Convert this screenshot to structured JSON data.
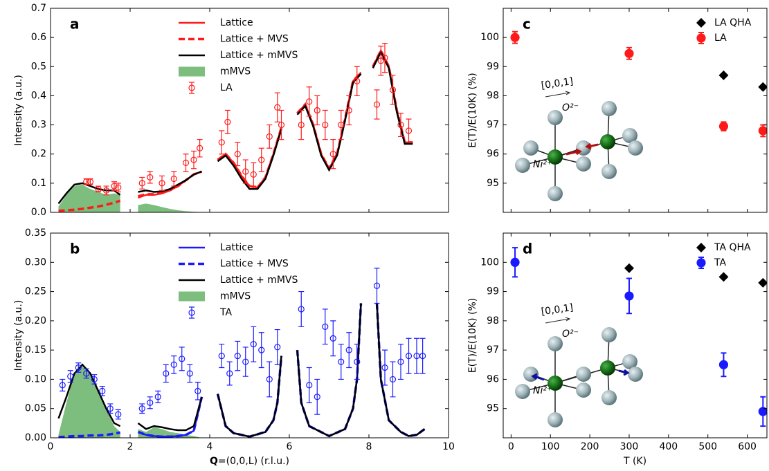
{
  "chart_data": [
    {
      "type": "line",
      "panel_label": "a",
      "ylabel": "Intensity (a.u.)",
      "xlim": [
        0,
        10
      ],
      "ylim": [
        0,
        0.7
      ],
      "xticks": [
        0,
        2,
        4,
        6,
        8,
        10
      ],
      "show_xtick_labels": false,
      "yticks": [
        {
          "value": 0,
          "label": "0.0"
        },
        0.1,
        0.2,
        0.3,
        0.4,
        0.5,
        0.6,
        0.7
      ],
      "legend": "upper center",
      "x": [
        0.2,
        0.4,
        0.6,
        0.8,
        1.0,
        1.2,
        1.4,
        1.6,
        1.75,
        2.0,
        2.2,
        2.4,
        2.6,
        2.8,
        3.0,
        3.2,
        3.4,
        3.6,
        3.8,
        4.0,
        4.2,
        4.4,
        4.6,
        4.8,
        5.0,
        5.2,
        5.4,
        5.6,
        5.8,
        6.0,
        6.2,
        6.4,
        6.6,
        6.8,
        7.0,
        7.2,
        7.4,
        7.6,
        7.8,
        7.95,
        8.1,
        8.3,
        8.5,
        8.7,
        8.9,
        9.1
      ],
      "series": [
        {
          "name": "Lattice",
          "color": "#ff1a1a",
          "style": "solid",
          "values": [
            0.005,
            0.006,
            0.008,
            0.01,
            0.013,
            0.017,
            0.022,
            0.03,
            0.035,
            null,
            0.05,
            0.06,
            0.06,
            0.065,
            0.075,
            0.09,
            0.11,
            0.13,
            0.14,
            null,
            0.18,
            0.2,
            0.17,
            0.125,
            0.09,
            0.085,
            0.12,
            0.2,
            0.29,
            null,
            0.34,
            0.37,
            0.3,
            0.2,
            0.15,
            0.2,
            0.32,
            0.45,
            0.48,
            null,
            0.5,
            0.555,
            0.5,
            0.35,
            0.24,
            0.24
          ]
        },
        {
          "name": "Lattice + MVS",
          "color": "#ff1a1a",
          "style": "dashed",
          "values": [
            0.005,
            0.007,
            0.009,
            0.012,
            0.016,
            0.02,
            0.026,
            0.033,
            0.04,
            null,
            0.055,
            0.062,
            0.062,
            0.066,
            0.076,
            0.09,
            0.11,
            0.13,
            0.14,
            null,
            0.18,
            0.2,
            0.17,
            0.125,
            0.09,
            0.085,
            0.12,
            0.2,
            0.29,
            null,
            0.34,
            0.37,
            0.3,
            0.2,
            0.15,
            0.2,
            0.32,
            0.45,
            0.48,
            null,
            0.5,
            0.555,
            0.5,
            0.35,
            0.24,
            0.24
          ]
        },
        {
          "name": "Lattice + mMVS",
          "color": "#000000",
          "style": "solid",
          "values": [
            0.03,
            0.065,
            0.095,
            0.1,
            0.09,
            0.08,
            0.075,
            0.075,
            0.06,
            null,
            0.07,
            0.075,
            0.07,
            0.072,
            0.08,
            0.095,
            0.11,
            0.13,
            0.14,
            null,
            0.175,
            0.195,
            0.16,
            0.115,
            0.08,
            0.08,
            0.115,
            0.195,
            0.285,
            null,
            0.335,
            0.365,
            0.295,
            0.195,
            0.145,
            0.195,
            0.315,
            0.445,
            0.475,
            null,
            0.495,
            0.55,
            0.495,
            0.345,
            0.235,
            0.235
          ]
        },
        {
          "name": "mMVS",
          "color": "#7dbd7d",
          "style": "area",
          "values": [
            0.02,
            0.06,
            0.09,
            0.095,
            0.08,
            0.07,
            0.06,
            0.065,
            0.06,
            null,
            0.025,
            0.03,
            0.025,
            0.018,
            0.012,
            0.007,
            0.004,
            0.002,
            0.001,
            null,
            0,
            0,
            0,
            0,
            0,
            0,
            0,
            0,
            0,
            null,
            0,
            0,
            0,
            0,
            0,
            0,
            0,
            0,
            0,
            null,
            0,
            0,
            0,
            0,
            0,
            0
          ]
        },
        {
          "name": "LA",
          "color": "#ff1a1a",
          "style": "errorbar",
          "marker": "open-circle",
          "x": [
            0.9,
            1.0,
            1.2,
            1.4,
            1.6,
            1.7,
            2.3,
            2.5,
            2.8,
            3.1,
            3.4,
            3.6,
            3.75,
            4.3,
            4.45,
            4.7,
            4.9,
            5.1,
            5.3,
            5.5,
            5.7,
            5.8,
            6.3,
            6.5,
            6.7,
            6.9,
            7.1,
            7.3,
            7.5,
            7.7,
            8.2,
            8.3,
            8.4,
            8.6,
            8.8,
            9.0
          ],
          "values": [
            0.105,
            0.105,
            0.08,
            0.075,
            0.09,
            0.085,
            0.1,
            0.12,
            0.1,
            0.115,
            0.17,
            0.18,
            0.22,
            0.24,
            0.31,
            0.2,
            0.14,
            0.13,
            0.18,
            0.26,
            0.36,
            0.3,
            0.3,
            0.38,
            0.35,
            0.3,
            0.2,
            0.3,
            0.35,
            0.45,
            0.37,
            0.52,
            0.53,
            0.42,
            0.3,
            0.28
          ],
          "errors": [
            0.01,
            0.01,
            0.01,
            0.015,
            0.015,
            0.015,
            0.02,
            0.02,
            0.025,
            0.025,
            0.03,
            0.03,
            0.03,
            0.04,
            0.04,
            0.04,
            0.04,
            0.04,
            0.04,
            0.04,
            0.05,
            0.05,
            0.05,
            0.05,
            0.05,
            0.05,
            0.05,
            0.05,
            0.05,
            0.05,
            0.05,
            0.05,
            0.05,
            0.05,
            0.04,
            0.04
          ]
        }
      ]
    },
    {
      "type": "line",
      "panel_label": "b",
      "ylabel": "Intensity (a.u.)",
      "xlabel": {
        "bold": "Q",
        "rest": "=(0,0,L) (r.l.u.)"
      },
      "xlim": [
        0,
        10
      ],
      "ylim": [
        0,
        0.35
      ],
      "xticks": [
        0,
        2,
        4,
        6,
        8,
        10
      ],
      "show_xtick_labels": true,
      "yticks": [
        {
          "value": 0,
          "label": "0.00"
        },
        0.05,
        {
          "value": 0.1,
          "label": "0.10"
        },
        0.15,
        {
          "value": 0.2,
          "label": "0.20"
        },
        0.25,
        {
          "value": 0.3,
          "label": "0.30"
        },
        0.35
      ],
      "legend": "upper center",
      "x": [
        0.2,
        0.4,
        0.6,
        0.8,
        1.0,
        1.2,
        1.4,
        1.6,
        1.75,
        2.0,
        2.2,
        2.4,
        2.6,
        2.8,
        3.0,
        3.2,
        3.4,
        3.6,
        3.8,
        4.0,
        4.2,
        4.4,
        4.6,
        5.0,
        5.4,
        5.6,
        5.7,
        5.8,
        6.0,
        6.2,
        6.3,
        6.5,
        7.0,
        7.4,
        7.6,
        7.7,
        7.8,
        8.0,
        8.2,
        8.3,
        8.5,
        8.8,
        9.0,
        9.2,
        9.4
      ],
      "series": [
        {
          "name": "Lattice",
          "color": "#1a1aff",
          "style": "solid",
          "values": [
            0.001,
            0.001,
            0.002,
            0.002,
            0.003,
            0.003,
            0.004,
            0.006,
            0.008,
            null,
            0.01,
            0.005,
            0.003,
            0.002,
            0.002,
            0.003,
            0.005,
            0.012,
            0.07,
            null,
            0.075,
            0.02,
            0.008,
            0.002,
            0.01,
            0.03,
            0.06,
            0.14,
            null,
            0.15,
            0.06,
            0.02,
            0.003,
            0.015,
            0.05,
            0.1,
            0.23,
            null,
            0.23,
            0.1,
            0.03,
            0.01,
            0.003,
            0.005,
            0.015
          ]
        },
        {
          "name": "Lattice + MVS",
          "color": "#1a1aff",
          "style": "dashed",
          "values": [
            0.001,
            0.002,
            0.003,
            0.003,
            0.004,
            0.004,
            0.005,
            0.007,
            0.009,
            null,
            0.01,
            0.005,
            0.003,
            0.002,
            0.002,
            0.003,
            0.005,
            0.012,
            0.07,
            null,
            0.075,
            0.02,
            0.008,
            0.002,
            0.01,
            0.03,
            0.06,
            0.14,
            null,
            0.15,
            0.06,
            0.02,
            0.003,
            0.015,
            0.05,
            0.1,
            0.23,
            null,
            0.23,
            0.1,
            0.03,
            0.01,
            0.003,
            0.005,
            0.015
          ]
        },
        {
          "name": "Lattice + mMVS",
          "color": "#000000",
          "style": "solid",
          "values": [
            0.033,
            0.07,
            0.11,
            0.125,
            0.11,
            0.08,
            0.05,
            0.025,
            0.02,
            null,
            0.025,
            0.015,
            0.02,
            0.018,
            0.015,
            0.013,
            0.013,
            0.02,
            0.07,
            null,
            0.075,
            0.02,
            0.008,
            0.002,
            0.01,
            0.03,
            0.06,
            0.14,
            null,
            0.15,
            0.06,
            0.02,
            0.003,
            0.015,
            0.05,
            0.1,
            0.23,
            null,
            0.23,
            0.1,
            0.03,
            0.01,
            0.003,
            0.005,
            0.015
          ]
        },
        {
          "name": "mMVS",
          "color": "#7dbd7d",
          "style": "area",
          "values": [
            0.005,
            0.06,
            0.11,
            0.122,
            0.108,
            0.078,
            0.048,
            0.02,
            0.01,
            null,
            0.015,
            0.01,
            0.018,
            0.015,
            0.01,
            0.008,
            0.005,
            0.003,
            0,
            null,
            0,
            0,
            0,
            0,
            0,
            0,
            0,
            0,
            null,
            0,
            0,
            0,
            0,
            0,
            0,
            0,
            0,
            null,
            0,
            0,
            0,
            0,
            0,
            0,
            0
          ]
        },
        {
          "name": "TA",
          "color": "#1a1aff",
          "style": "errorbar",
          "marker": "open-circle",
          "x": [
            0.3,
            0.5,
            0.7,
            0.9,
            1.1,
            1.3,
            1.5,
            1.7,
            2.3,
            2.5,
            2.7,
            2.9,
            3.1,
            3.3,
            3.5,
            3.7,
            4.3,
            4.5,
            4.7,
            4.9,
            5.1,
            5.3,
            5.5,
            5.7,
            6.3,
            6.5,
            6.7,
            6.9,
            7.1,
            7.3,
            7.5,
            7.7,
            8.2,
            8.4,
            8.6,
            8.8,
            9.0,
            9.2,
            9.35
          ],
          "values": [
            0.09,
            0.105,
            0.12,
            0.11,
            0.1,
            0.08,
            0.05,
            0.04,
            0.05,
            0.06,
            0.07,
            0.11,
            0.125,
            0.135,
            0.11,
            0.08,
            0.14,
            0.11,
            0.14,
            0.13,
            0.16,
            0.15,
            0.1,
            0.155,
            0.22,
            0.09,
            0.07,
            0.19,
            0.17,
            0.13,
            0.15,
            0.13,
            0.26,
            0.12,
            0.1,
            0.13,
            0.14,
            0.14,
            0.14
          ],
          "errors": [
            0.01,
            0.01,
            0.008,
            0.008,
            0.008,
            0.008,
            0.008,
            0.008,
            0.008,
            0.01,
            0.01,
            0.015,
            0.015,
            0.02,
            0.015,
            0.015,
            0.02,
            0.02,
            0.025,
            0.025,
            0.03,
            0.03,
            0.03,
            0.03,
            0.03,
            0.03,
            0.03,
            0.03,
            0.03,
            0.03,
            0.03,
            0.03,
            0.03,
            0.03,
            0.03,
            0.03,
            0.03,
            0.03,
            0.03
          ]
        }
      ]
    },
    {
      "type": "scatter",
      "panel_label": "c",
      "ylabel": "E(T)/E(10K) (%)",
      "xlim": [
        -20,
        650
      ],
      "ylim": [
        94,
        101
      ],
      "xticks": [
        0,
        100,
        200,
        300,
        400,
        500,
        600
      ],
      "show_xtick_labels": false,
      "yticks": [
        95,
        96,
        97,
        98,
        99,
        100
      ],
      "legend": "upper right",
      "annotations": [
        "[0,0,1]",
        "O²⁻",
        "Ni²⁺"
      ],
      "series": [
        {
          "name": "LA QHA",
          "color": "#000000",
          "style": "points",
          "marker": "diamond",
          "x": [
            540,
            640
          ],
          "values": [
            98.7,
            98.3
          ]
        },
        {
          "name": "LA",
          "color": "#ff1a1a",
          "style": "errorbar",
          "marker": "circle",
          "x": [
            10,
            300,
            540,
            640
          ],
          "values": [
            100.0,
            99.45,
            96.95,
            96.8
          ],
          "errors": [
            0.2,
            0.2,
            0.15,
            0.2
          ]
        }
      ]
    },
    {
      "type": "scatter",
      "panel_label": "d",
      "ylabel": "E(T)/E(10K) (%)",
      "xlabel": {
        "rest": "T (K)"
      },
      "xlim": [
        -20,
        650
      ],
      "ylim": [
        94,
        101
      ],
      "xticks": [
        0,
        100,
        200,
        300,
        400,
        500,
        600
      ],
      "show_xtick_labels": true,
      "yticks": [
        95,
        96,
        97,
        98,
        99,
        100
      ],
      "legend": "upper right",
      "annotations": [
        "[0,0,1]",
        "O²⁻",
        "Ni²⁺"
      ],
      "series": [
        {
          "name": "TA QHA",
          "color": "#000000",
          "style": "points",
          "marker": "diamond",
          "x": [
            300,
            540,
            640
          ],
          "values": [
            99.8,
            99.5,
            99.3
          ]
        },
        {
          "name": "TA",
          "color": "#1a1aff",
          "style": "errorbar",
          "marker": "circle",
          "x": [
            10,
            300,
            540,
            640
          ],
          "values": [
            100.0,
            98.85,
            96.5,
            94.9
          ],
          "errors": [
            0.5,
            0.6,
            0.4,
            0.5
          ]
        }
      ]
    }
  ]
}
